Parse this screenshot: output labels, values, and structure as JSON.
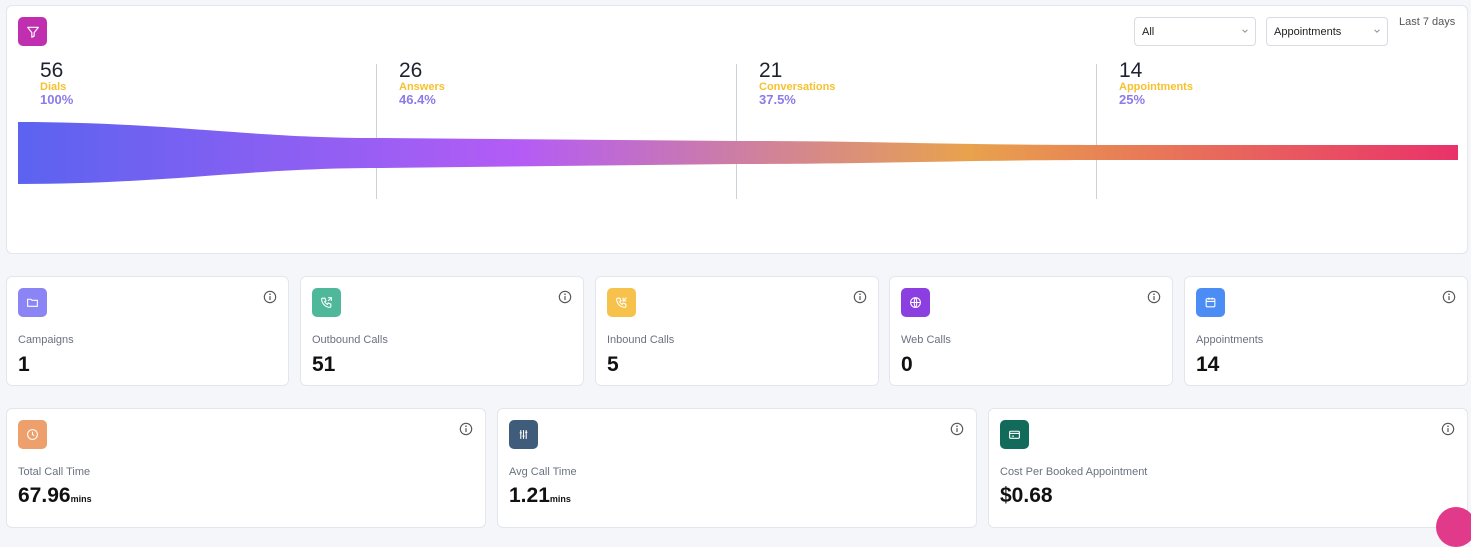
{
  "funnel": {
    "filter_selected": "All",
    "metric_selected": "Appointments",
    "period": "Last 7 days",
    "stages": [
      {
        "value": "56",
        "label": "Dials",
        "pct": "100%"
      },
      {
        "value": "26",
        "label": "Answers",
        "pct": "46.4%"
      },
      {
        "value": "21",
        "label": "Conversations",
        "pct": "37.5%"
      },
      {
        "value": "14",
        "label": "Appointments",
        "pct": "25%"
      }
    ],
    "gradient_colors": [
      "#5b63f0",
      "#b45cf5",
      "#e8a24d",
      "#e9326a"
    ]
  },
  "stats_row1": [
    {
      "label": "Campaigns",
      "value": "1",
      "icon": "folder-icon",
      "color": "#8b84f5"
    },
    {
      "label": "Outbound Calls",
      "value": "51",
      "icon": "phone-outgoing-icon",
      "color": "#4fb89a"
    },
    {
      "label": "Inbound Calls",
      "value": "5",
      "icon": "phone-incoming-icon",
      "color": "#f7c24b"
    },
    {
      "label": "Web Calls",
      "value": "0",
      "icon": "globe-icon",
      "color": "#8b3fe0"
    },
    {
      "label": "Appointments",
      "value": "14",
      "icon": "calendar-icon",
      "color": "#4b8df5"
    }
  ],
  "stats_row2": [
    {
      "label": "Total Call Time",
      "value": "67.96",
      "unit": "mins",
      "icon": "clock-icon",
      "color": "#eda06b"
    },
    {
      "label": "Avg Call Time",
      "value": "1.21",
      "unit": "mins",
      "icon": "sliders-icon",
      "color": "#3f5c7a"
    },
    {
      "label": "Cost Per Booked Appointment",
      "value": "$0.68",
      "unit": "",
      "icon": "credit-card-icon",
      "color": "#126b5a"
    }
  ]
}
